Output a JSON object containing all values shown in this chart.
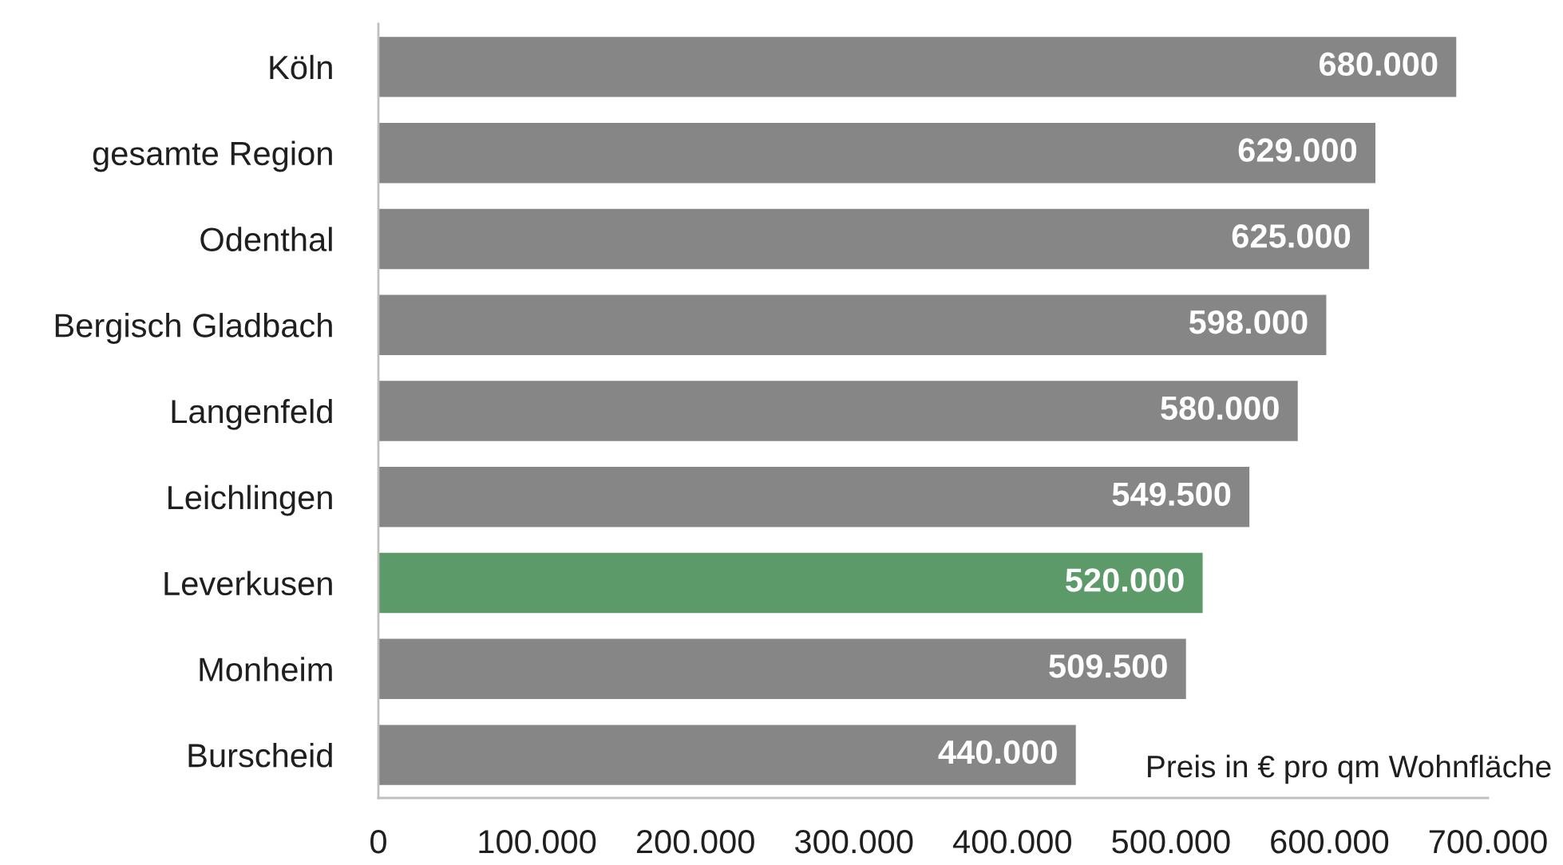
{
  "chart_data": {
    "type": "bar",
    "orientation": "horizontal",
    "categories": [
      "Köln",
      "gesamte Region",
      "Odenthal",
      "Bergisch Gladbach",
      "Langenfeld",
      "Leichlingen",
      "Leverkusen",
      "Monheim",
      "Burscheid"
    ],
    "values": [
      680000,
      629000,
      625000,
      598000,
      580000,
      549500,
      520000,
      509500,
      440000
    ],
    "colors": [
      "#868686",
      "#868686",
      "#868686",
      "#868686",
      "#868686",
      "#868686",
      "#5c9a69",
      "#868686",
      "#868686"
    ],
    "value_labels": [
      "680.000",
      "629.000",
      "625.000",
      "598.000",
      "580.000",
      "549.500",
      "520.000",
      "509.500",
      "440.000"
    ],
    "xlim": [
      0,
      700000
    ],
    "xticks": [
      0,
      {
        "value": 100000,
        "label": "100.000"
      },
      {
        "value": 200000,
        "label": "200.000"
      },
      {
        "value": 300000,
        "label": "300.000"
      },
      {
        "value": 400000,
        "label": "400.000"
      },
      {
        "value": 500000,
        "label": "500.000"
      },
      {
        "value": 600000,
        "label": "600.000"
      },
      {
        "value": 700000,
        "label": "700.000"
      }
    ],
    "annotations": [
      "Preis in € pro qm Wohnfläche"
    ]
  }
}
